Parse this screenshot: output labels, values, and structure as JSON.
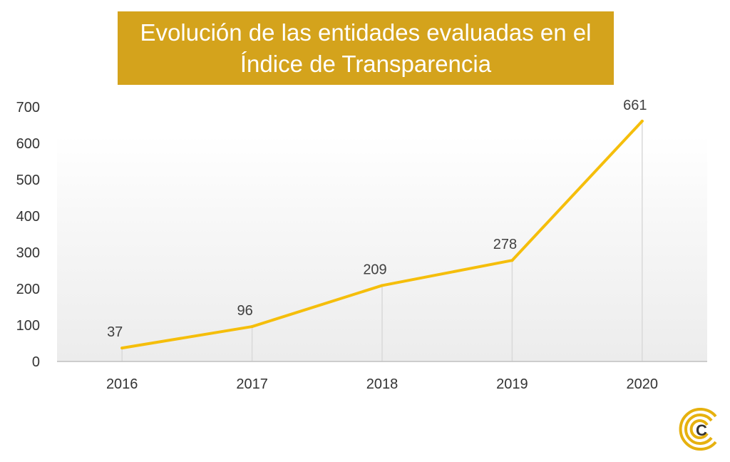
{
  "chart_data": {
    "type": "line",
    "title_lines": [
      "Evolución de las entidades evaluadas en el",
      "Índice de Transparencia"
    ],
    "categories": [
      "2016",
      "2017",
      "2018",
      "2019",
      "2020"
    ],
    "values": [
      37,
      96,
      209,
      278,
      661
    ],
    "data_labels": [
      "37",
      "96",
      "209",
      "278",
      "661"
    ],
    "y_ticks": [
      "0",
      "100",
      "200",
      "300",
      "400",
      "500",
      "600",
      "700"
    ],
    "ylim": [
      0,
      700
    ],
    "xlabel": "",
    "ylabel": "",
    "grid": false,
    "drop_lines": true,
    "legend": "none",
    "colors": {
      "line": "#f5be0b",
      "title_bg": "#d4a31c",
      "drop_line": "#d9d9d9",
      "axis": "#bfbfbf"
    }
  },
  "logo": {
    "icon": "c-rings-logo-icon",
    "letter": "C",
    "color": "#e6b10f"
  }
}
